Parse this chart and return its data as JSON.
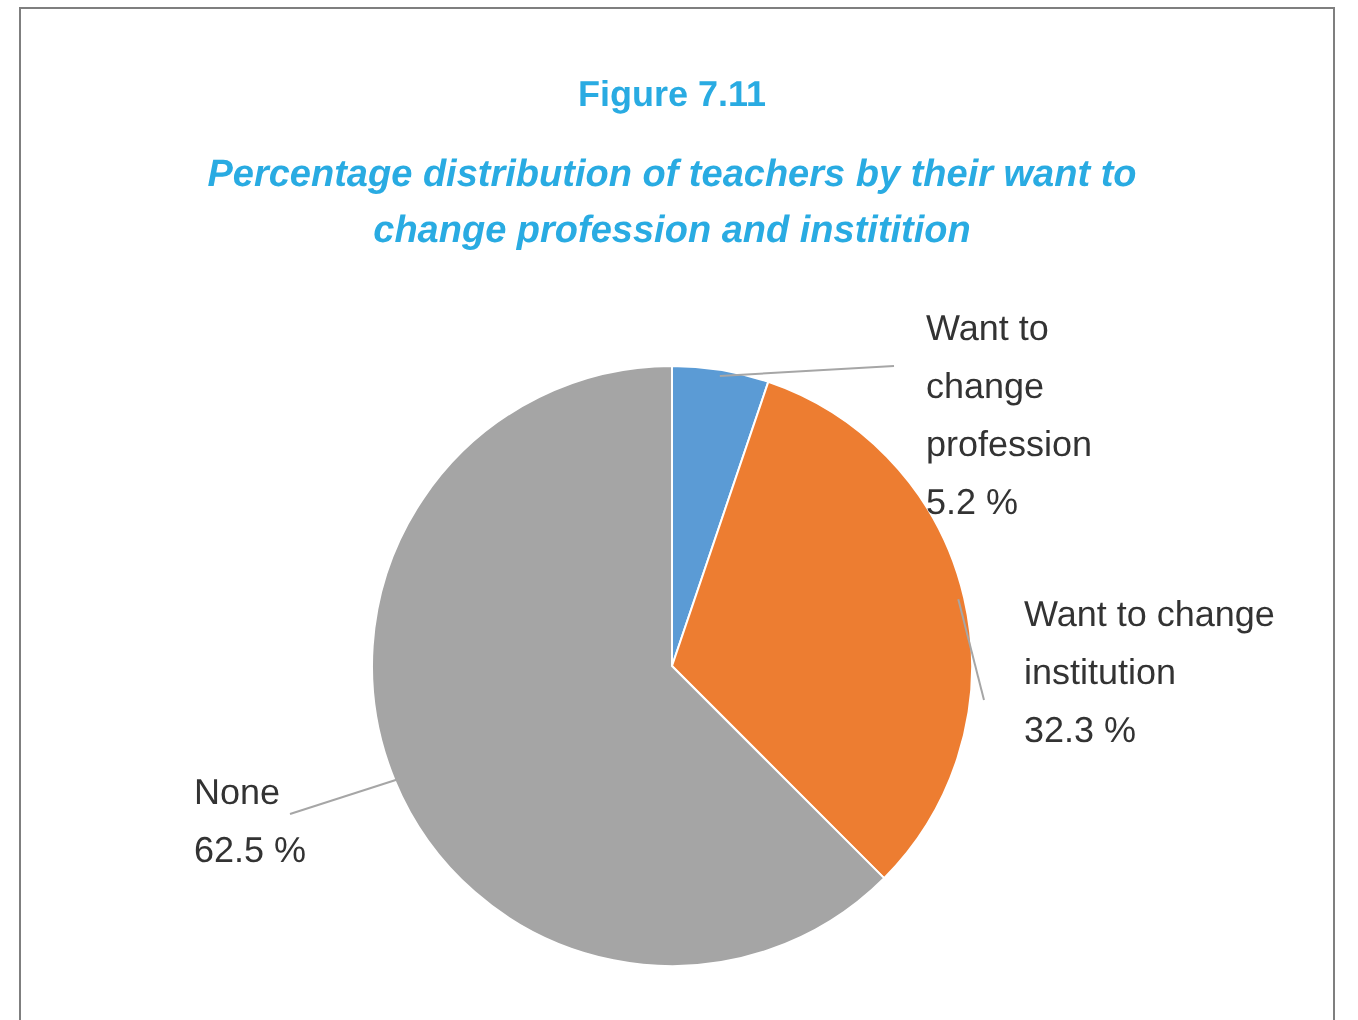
{
  "chart_data": {
    "type": "pie",
    "title": "Figure 7.11",
    "subtitle": "Percentage distribution of teachers by their want to change profession and institition",
    "categories": [
      "Want to change profession",
      "Want to change institution",
      "None"
    ],
    "values": [
      5.2,
      32.3,
      62.5
    ],
    "value_labels": [
      "5.2 %",
      "32.3 %",
      "62.5 %"
    ],
    "colors": [
      "#5b9bd5",
      "#ed7d31",
      "#a5a5a5"
    ]
  }
}
